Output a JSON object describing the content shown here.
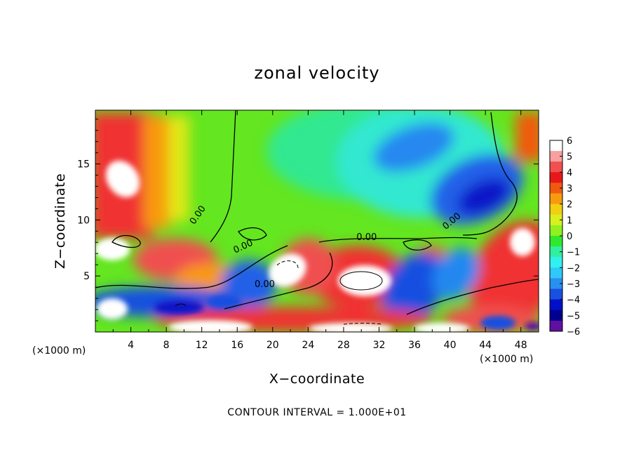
{
  "chart_data": {
    "type": "heatmap",
    "title": "zonal velocity",
    "xlabel": "X−coordinate",
    "ylabel": "Z−coordinate",
    "x_unit": "(×1000 m)",
    "y_unit": "(×1000 m)",
    "xlim": [
      0,
      50
    ],
    "ylim": [
      0,
      19.8
    ],
    "x_ticks": [
      "4",
      "8",
      "12",
      "16",
      "20",
      "24",
      "28",
      "32",
      "36",
      "40",
      "44",
      "48"
    ],
    "y_ticks": [
      "5",
      "10",
      "15"
    ],
    "x_tick_values": [
      4,
      8,
      12,
      16,
      20,
      24,
      28,
      32,
      36,
      40,
      44,
      48
    ],
    "y_tick_values": [
      5,
      10,
      15
    ],
    "colorbar": {
      "range": [
        -6,
        6
      ],
      "labels": [
        "6",
        "5",
        "4",
        "3",
        "2",
        "1",
        "0",
        "−1",
        "−2",
        "−3",
        "−4",
        "−5",
        "−6"
      ],
      "colors": [
        "#ffffff",
        "#f8a0a0",
        "#f05050",
        "#e81818",
        "#f05a10",
        "#f89a10",
        "#f0d010",
        "#d8f020",
        "#90f020",
        "#30e830",
        "#30f0a0",
        "#30f0f0",
        "#30c8f8",
        "#2890f0",
        "#1850e0",
        "#0010c8",
        "#000090",
        "#6010a0"
      ]
    },
    "contour_labels": [
      {
        "text": "0.00",
        "x": 11.8,
        "y": 10.3,
        "rot": -55
      },
      {
        "text": "0.00",
        "x": 16.8,
        "y": 7.4,
        "rot": -25
      },
      {
        "text": "0.00",
        "x": 19.1,
        "y": 4.0,
        "rot": 0
      },
      {
        "text": "0.00",
        "x": 30.6,
        "y": 8.2,
        "rot": 0
      },
      {
        "text": "0.00",
        "x": 40.4,
        "y": 9.7,
        "rot": -40
      }
    ],
    "footer": "CONTOUR INTERVAL = 1.000E+01"
  }
}
